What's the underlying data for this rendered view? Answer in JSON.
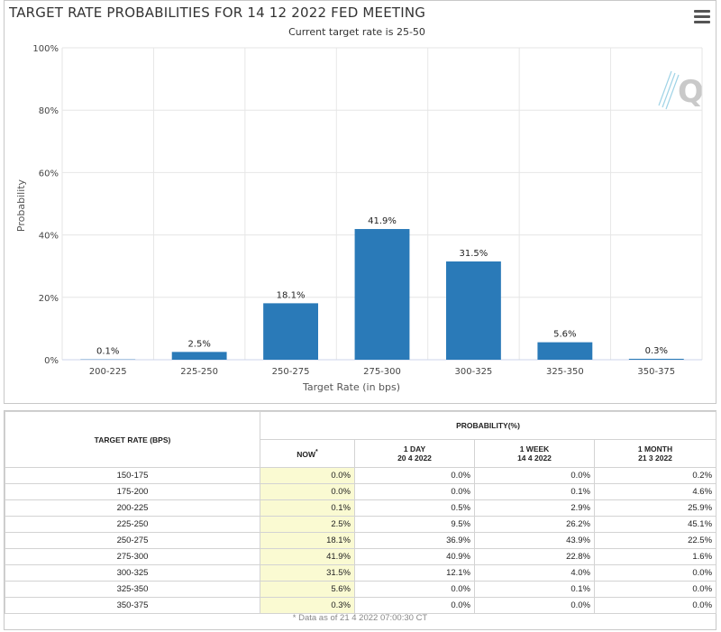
{
  "chart": {
    "title": "TARGET RATE PROBABILITIES FOR 14 12 2022 FED MEETING",
    "subtitle": "Current target rate is 25-50"
  },
  "chart_data": {
    "type": "bar",
    "title": "TARGET RATE PROBABILITIES FOR 14 12 2022 FED MEETING",
    "subtitle": "Current target rate is 25-50",
    "xlabel": "Target Rate (in bps)",
    "ylabel": "Probability",
    "categories": [
      "200-225",
      "225-250",
      "250-275",
      "275-300",
      "300-325",
      "325-350",
      "350-375"
    ],
    "values": [
      0.1,
      2.5,
      18.1,
      41.9,
      31.5,
      5.6,
      0.3
    ],
    "data_labels": [
      "0.1%",
      "2.5%",
      "18.1%",
      "41.9%",
      "31.5%",
      "5.6%",
      "0.3%"
    ],
    "yticks": [
      "0%",
      "20%",
      "40%",
      "60%",
      "80%",
      "100%"
    ],
    "ylim": [
      0,
      100
    ],
    "grid": true,
    "bar_color": "#2a7ab8"
  },
  "table": {
    "header_rate": "TARGET RATE (BPS)",
    "header_prob": "PROBABILITY(%)",
    "col_now": "NOW",
    "col_now_mark": "*",
    "col_1day": "1 DAY",
    "col_1day_date": "20 4 2022",
    "col_1week": "1 WEEK",
    "col_1week_date": "14 4 2022",
    "col_1month": "1 MONTH",
    "col_1month_date": "21 3 2022",
    "rows": [
      {
        "rate": "150-175",
        "now": "0.0%",
        "day": "0.0%",
        "week": "0.0%",
        "month": "0.2%"
      },
      {
        "rate": "175-200",
        "now": "0.0%",
        "day": "0.0%",
        "week": "0.1%",
        "month": "4.6%"
      },
      {
        "rate": "200-225",
        "now": "0.1%",
        "day": "0.5%",
        "week": "2.9%",
        "month": "25.9%"
      },
      {
        "rate": "225-250",
        "now": "2.5%",
        "day": "9.5%",
        "week": "26.2%",
        "month": "45.1%"
      },
      {
        "rate": "250-275",
        "now": "18.1%",
        "day": "36.9%",
        "week": "43.9%",
        "month": "22.5%"
      },
      {
        "rate": "275-300",
        "now": "41.9%",
        "day": "40.9%",
        "week": "22.8%",
        "month": "1.6%"
      },
      {
        "rate": "300-325",
        "now": "31.5%",
        "day": "12.1%",
        "week": "4.0%",
        "month": "0.0%"
      },
      {
        "rate": "325-350",
        "now": "5.6%",
        "day": "0.0%",
        "week": "0.1%",
        "month": "0.0%"
      },
      {
        "rate": "350-375",
        "now": "0.3%",
        "day": "0.0%",
        "week": "0.0%",
        "month": "0.0%"
      }
    ],
    "footnote": "* Data as of 21 4 2022 07:00:30 CT"
  }
}
